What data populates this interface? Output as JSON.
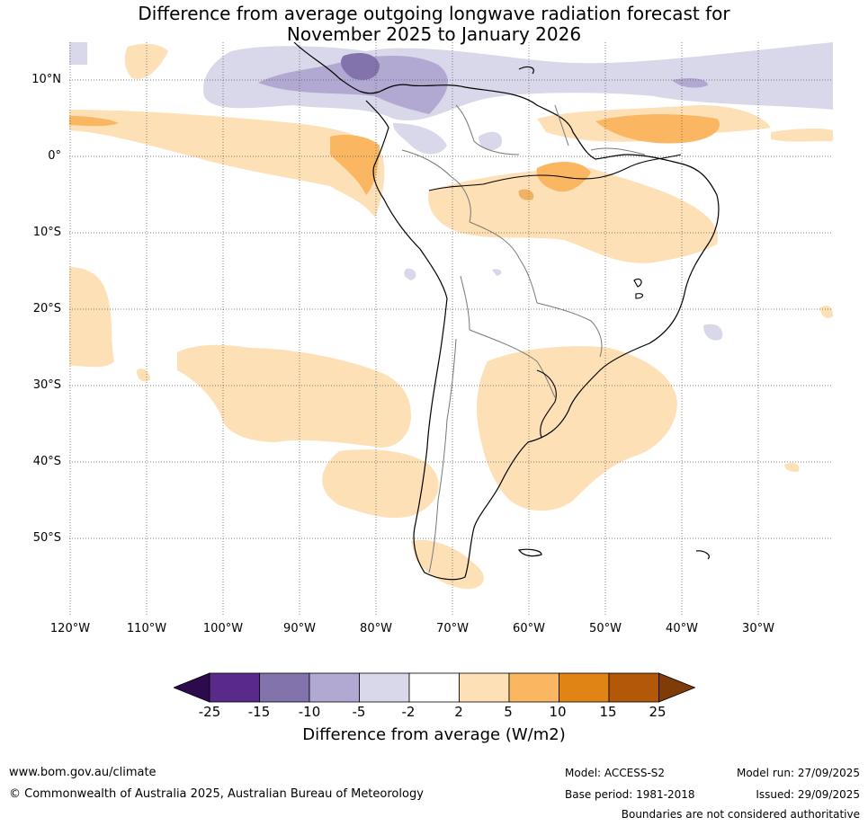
{
  "title": {
    "line1": "Difference from average outgoing longwave radiation forecast for",
    "line2": "November 2025 to January 2026"
  },
  "map": {
    "lat_labels": [
      "10°N",
      "0°",
      "10°S",
      "20°S",
      "30°S",
      "40°S",
      "50°S"
    ],
    "lon_labels": [
      "120°W",
      "110°W",
      "100°W",
      "90°W",
      "80°W",
      "70°W",
      "60°W",
      "50°W",
      "40°W",
      "30°W"
    ]
  },
  "colorbar": {
    "ticks": [
      "-25",
      "-15",
      "-10",
      "-5",
      "-2",
      "2",
      "5",
      "10",
      "15",
      "25"
    ],
    "colors": [
      "#2d0a4e",
      "#5a2a8a",
      "#8273ad",
      "#b1a9d2",
      "#d8d8ea",
      "#ffffff",
      "#fde0b5",
      "#fbb662",
      "#e08416",
      "#b35808",
      "#7f3b08"
    ],
    "label": "Difference from average (W/m2)"
  },
  "footer": {
    "website": "www.bom.gov.au/climate",
    "copyright": "© Commonwealth of Australia 2025, Australian Bureau of Meteorology",
    "model": "Model: ACCESS-S2",
    "model_run": "Model run: 27/09/2025",
    "base_period": "Base period: 1981-2018",
    "issued": "Issued: 29/09/2025",
    "disclaimer": "Boundaries are not considered authoritative"
  }
}
